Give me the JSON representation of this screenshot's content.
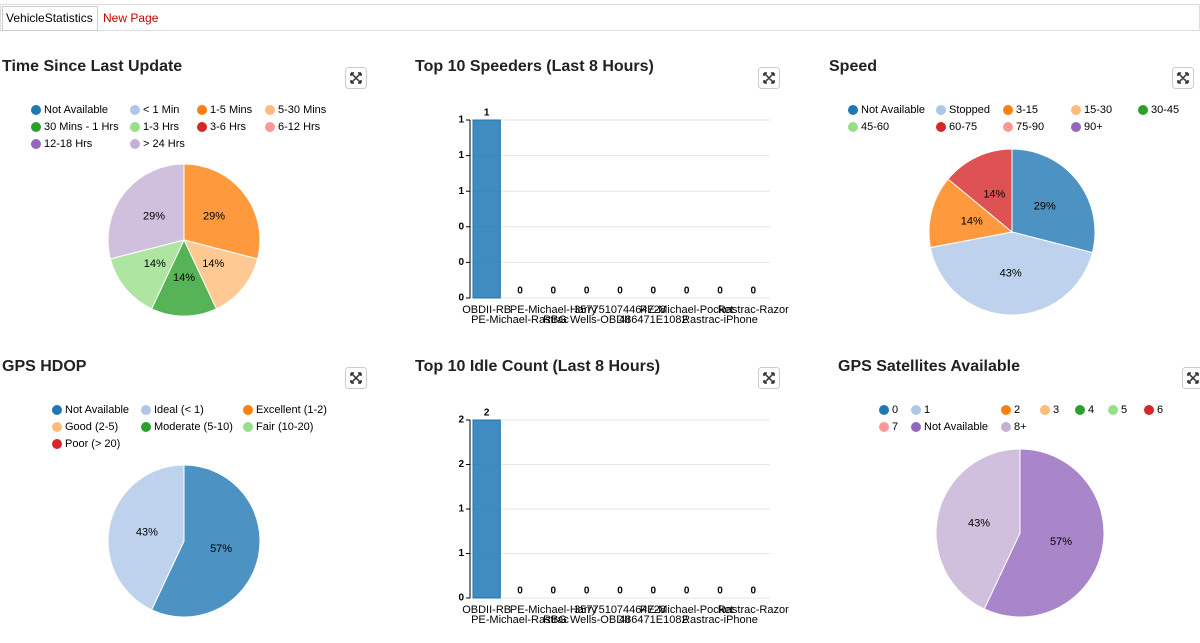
{
  "tabs": [
    "VehicleStatistics",
    "New Page"
  ],
  "chart_data": [
    {
      "type": "pie",
      "title": "Time Since Last Update",
      "categories": [
        "Not Available",
        "< 1 Min",
        "1-5 Mins",
        "5-30 Mins",
        "30 Mins - 1 Hrs",
        "1-3 Hrs",
        "3-6 Hrs",
        "6-12 Hrs",
        "12-18 Hrs",
        "> 24 Hrs"
      ],
      "colors": [
        "#1f77b4",
        "#aec7e8",
        "#ff7f0e",
        "#ffbb78",
        "#2ca02c",
        "#98df8a",
        "#d62728",
        "#ff9896",
        "#9467bd",
        "#c5b0d5"
      ],
      "values": [
        0,
        0,
        29,
        14,
        14,
        14,
        0,
        0,
        0,
        29
      ],
      "value_labels": [
        null,
        null,
        "29%",
        "14%",
        "14%",
        "14%",
        null,
        null,
        null,
        "29%"
      ]
    },
    {
      "type": "bar",
      "title": "Top 10 Speeders (Last 8 Hours)",
      "categories": [
        "OBDII-RB",
        "PE-Michael-Rastrac",
        "PE-Michael-Harry",
        "RBG Wells-OBDII",
        "357751074464728",
        "486471E1082",
        "PE-Michael-Pocket",
        "Rastrac-iPhone",
        "Rastrac-Razor"
      ],
      "colors": [
        "#1f77b4",
        "#aec7e8",
        "#ff7f0e",
        "#ffbb78",
        "#2ca02c",
        "#98df8a",
        "#d62728",
        "#ff9896",
        "#9467bd"
      ],
      "values": [
        1,
        0,
        0,
        0,
        0,
        0,
        0,
        0,
        0
      ],
      "ylim": [
        0,
        1
      ],
      "yticks": [
        0,
        {
          "value": 0.2,
          "label": "0"
        },
        {
          "value": 0.4,
          "label": "0"
        },
        {
          "value": 0.6,
          "label": "1"
        },
        {
          "value": 0.8,
          "label": "1"
        },
        1
      ],
      "grid": true
    },
    {
      "type": "pie",
      "title": "Speed",
      "categories": [
        "Not Available",
        "Stopped",
        "3-15",
        "15-30",
        "30-45",
        "45-60",
        "60-75",
        "75-90",
        "90+"
      ],
      "colors": [
        "#1f77b4",
        "#aec7e8",
        "#ff7f0e",
        "#ffbb78",
        "#2ca02c",
        "#98df8a",
        "#d62728",
        "#ff9896",
        "#9467bd"
      ],
      "values": [
        29,
        43,
        14,
        0,
        0,
        0,
        14,
        0,
        0
      ],
      "value_labels": [
        "29%",
        "43%",
        "14%",
        null,
        null,
        null,
        "14%",
        null,
        null
      ]
    },
    {
      "type": "pie",
      "title": "GPS HDOP",
      "categories": [
        "Not Available",
        "Ideal (< 1)",
        "Excellent (1-2)",
        "Good (2-5)",
        "Moderate (5-10)",
        "Fair (10-20)",
        "Poor (> 20)"
      ],
      "colors": [
        "#1f77b4",
        "#aec7e8",
        "#ff7f0e",
        "#ffbb78",
        "#2ca02c",
        "#98df8a",
        "#d62728"
      ],
      "values": [
        57,
        43,
        0,
        0,
        0,
        0,
        0
      ],
      "value_labels": [
        "57%",
        "43%",
        null,
        null,
        null,
        null,
        null
      ]
    },
    {
      "type": "bar",
      "title": "Top 10 Idle Count (Last 8 Hours)",
      "categories": [
        "OBDII-RB",
        "PE-Michael-Rastrac",
        "PE-Michael-Harry",
        "RBG Wells-OBDII",
        "357751074464728",
        "486471E1082",
        "PE-Michael-Pocket",
        "Rastrac-iPhone",
        "Rastrac-Razor"
      ],
      "colors": [
        "#1f77b4",
        "#aec7e8",
        "#ff7f0e",
        "#ffbb78",
        "#2ca02c",
        "#98df8a",
        "#d62728",
        "#ff9896",
        "#9467bd"
      ],
      "values": [
        2,
        0,
        0,
        0,
        0,
        0,
        0,
        0,
        0
      ],
      "ylim": [
        0,
        2
      ],
      "yticks": [
        0,
        {
          "value": 0.5,
          "label": "1"
        },
        1,
        {
          "value": 1.5,
          "label": "2"
        },
        2
      ],
      "grid": true
    },
    {
      "type": "pie",
      "title": "GPS Satellites Available",
      "categories": [
        "0",
        "1",
        "2",
        "3",
        "4",
        "5",
        "6",
        "7",
        "Not Available",
        "8+"
      ],
      "colors": [
        "#1f77b4",
        "#aec7e8",
        "#ff7f0e",
        "#ffbb78",
        "#2ca02c",
        "#98df8a",
        "#d62728",
        "#ff9896",
        "#9467bd",
        "#c5b0d5"
      ],
      "values": [
        0,
        0,
        0,
        0,
        0,
        0,
        0,
        0,
        57,
        43
      ],
      "value_labels": [
        null,
        null,
        null,
        null,
        null,
        null,
        null,
        null,
        "57%",
        "43%"
      ]
    }
  ]
}
